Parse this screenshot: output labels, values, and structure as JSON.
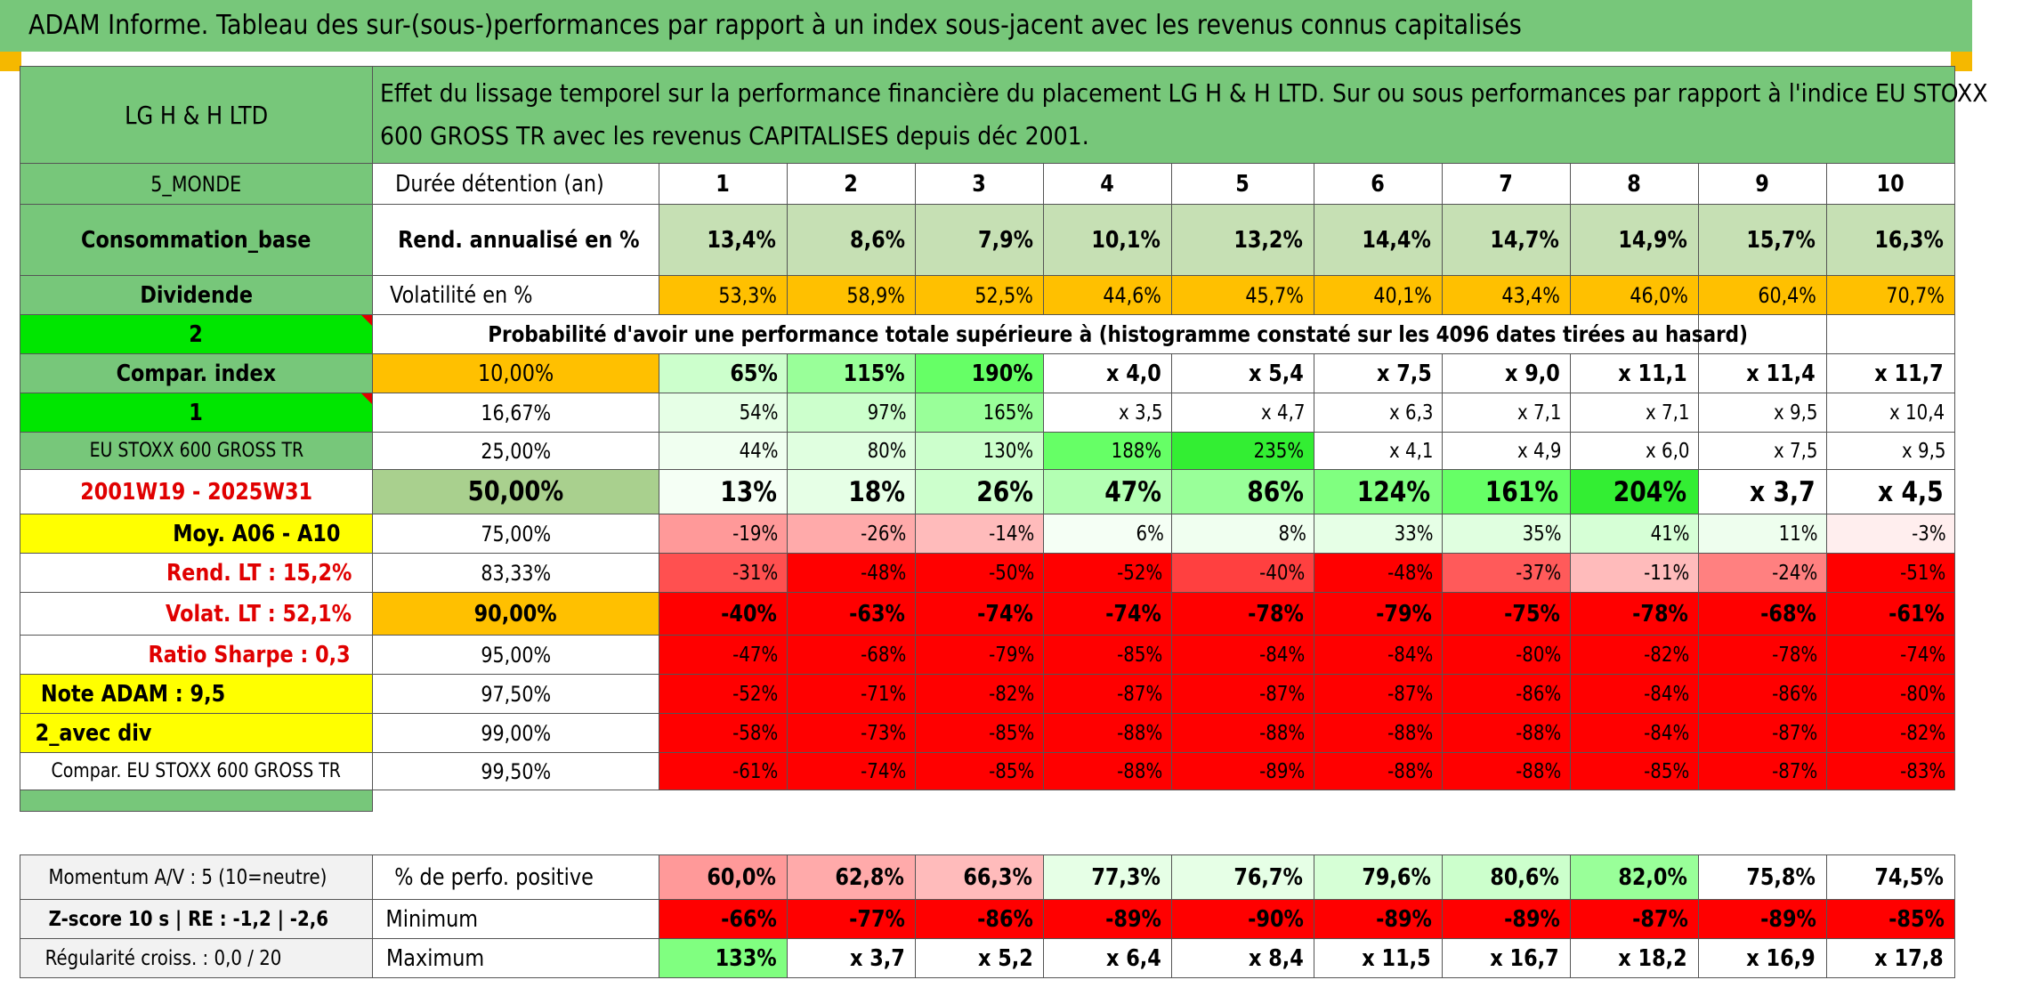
{
  "title": "ADAM Informe. Tableau des sur-(sous-)performances par rapport à un index sous-jacent avec les revenus connus capitalisés",
  "left": {
    "fund": "LG H & H LTD",
    "region": "5_MONDE",
    "sector": "Consommation_base",
    "style": "Dividende",
    "selector": "2",
    "compar_label": "Compar. index",
    "selector2": "1",
    "index_name": "EU STOXX 600 GROSS TR",
    "period": "2001W19 - 2025W31",
    "moy": "Moy. A06 - A10",
    "rend_lt": "Rend. LT :    15,2%",
    "volat_lt": "Volat. LT :    52,1%",
    "sharpe": "Ratio Sharpe :    0,3",
    "note": "Note ADAM : 9,5",
    "div": "2_avec div",
    "compar_full": "Compar. EU STOXX 600 GROSS TR"
  },
  "header": {
    "description": "Effet du lissage temporel sur la performance financière du placement LG H & H LTD. Sur ou sous performances par rapport à l'indice EU STOXX 600 GROSS TR avec les revenus CAPITALISES depuis déc 2001.",
    "duration_label": "Durée détention (an)",
    "years": [
      "1",
      "2",
      "3",
      "4",
      "5",
      "6",
      "7",
      "8",
      "9",
      "10"
    ]
  },
  "rendement": {
    "label": "Rend. annualisé en %",
    "values": [
      "13,4%",
      "8,6%",
      "7,9%",
      "10,1%",
      "13,2%",
      "14,4%",
      "14,7%",
      "14,9%",
      "15,7%",
      "16,3%"
    ]
  },
  "volatilite": {
    "label": "Volatilité en %",
    "values": [
      "53,3%",
      "58,9%",
      "52,5%",
      "44,6%",
      "45,7%",
      "40,1%",
      "43,4%",
      "46,0%",
      "60,4%",
      "70,7%"
    ]
  },
  "probability_text": "Probabilité d'avoir une performance totale supérieure à (histogramme constaté sur les 4096 dates tirées au hasard)",
  "percentile_rows": [
    {
      "pct": "10,00%",
      "values": [
        "65%",
        "115%",
        "190%",
        "x 4,0",
        "x 5,4",
        "x 7,5",
        "x 9,0",
        "x 11,1",
        "x 11,4",
        "x 11,7"
      ]
    },
    {
      "pct": "16,67%",
      "values": [
        "54%",
        "97%",
        "165%",
        "x 3,5",
        "x 4,7",
        "x 6,3",
        "x 7,1",
        "x 7,1",
        "x 9,5",
        "x 10,4"
      ]
    },
    {
      "pct": "25,00%",
      "values": [
        "44%",
        "80%",
        "130%",
        "188%",
        "235%",
        "x 4,1",
        "x 4,9",
        "x 6,0",
        "x 7,5",
        "x 9,5"
      ]
    },
    {
      "pct": "50,00%",
      "values": [
        "13%",
        "18%",
        "26%",
        "47%",
        "86%",
        "124%",
        "161%",
        "204%",
        "x 3,7",
        "x 4,5"
      ]
    },
    {
      "pct": "75,00%",
      "values": [
        "-19%",
        "-26%",
        "-14%",
        "6%",
        "8%",
        "33%",
        "35%",
        "41%",
        "11%",
        "-3%"
      ]
    },
    {
      "pct": "83,33%",
      "values": [
        "-31%",
        "-48%",
        "-50%",
        "-52%",
        "-40%",
        "-48%",
        "-37%",
        "-11%",
        "-24%",
        "-51%"
      ]
    },
    {
      "pct": "90,00%",
      "values": [
        "-40%",
        "-63%",
        "-74%",
        "-74%",
        "-78%",
        "-79%",
        "-75%",
        "-78%",
        "-68%",
        "-61%"
      ]
    },
    {
      "pct": "95,00%",
      "values": [
        "-47%",
        "-68%",
        "-79%",
        "-85%",
        "-84%",
        "-84%",
        "-80%",
        "-82%",
        "-78%",
        "-74%"
      ]
    },
    {
      "pct": "97,50%",
      "values": [
        "-52%",
        "-71%",
        "-82%",
        "-87%",
        "-87%",
        "-87%",
        "-86%",
        "-84%",
        "-86%",
        "-80%"
      ]
    },
    {
      "pct": "99,00%",
      "values": [
        "-58%",
        "-73%",
        "-85%",
        "-88%",
        "-88%",
        "-88%",
        "-88%",
        "-84%",
        "-87%",
        "-82%"
      ]
    },
    {
      "pct": "99,50%",
      "values": [
        "-61%",
        "-74%",
        "-85%",
        "-88%",
        "-89%",
        "-88%",
        "-88%",
        "-85%",
        "-87%",
        "-83%"
      ]
    }
  ],
  "bottom": {
    "momentum": "Momentum A/V : 5 (10=neutre)",
    "zscore": "Z-score 10 s | RE : -1,2 | -2,6",
    "regularite": "Régularité croiss. : 0,0 / 20",
    "positive_label": "% de perfo. positive",
    "positive": [
      "60,0%",
      "62,8%",
      "66,3%",
      "77,3%",
      "76,7%",
      "79,6%",
      "80,6%",
      "82,0%",
      "75,8%",
      "74,5%"
    ],
    "min_label": "Minimum",
    "minimum": [
      "-66%",
      "-77%",
      "-86%",
      "-89%",
      "-90%",
      "-89%",
      "-89%",
      "-87%",
      "-89%",
      "-85%"
    ],
    "max_label": "Maximum",
    "maximum": [
      "133%",
      "x 3,7",
      "x 5,2",
      "x 6,4",
      "x 8,4",
      "x 11,5",
      "x 16,7",
      "x 18,2",
      "x 16,9",
      "x 17,8"
    ]
  },
  "colors": {
    "header_green": "#77c77a",
    "light_green": "#c6e0b4",
    "orange": "#ffc000",
    "bright_green": "#00e600",
    "yellow": "#ffff00",
    "red": "#ff0000"
  }
}
